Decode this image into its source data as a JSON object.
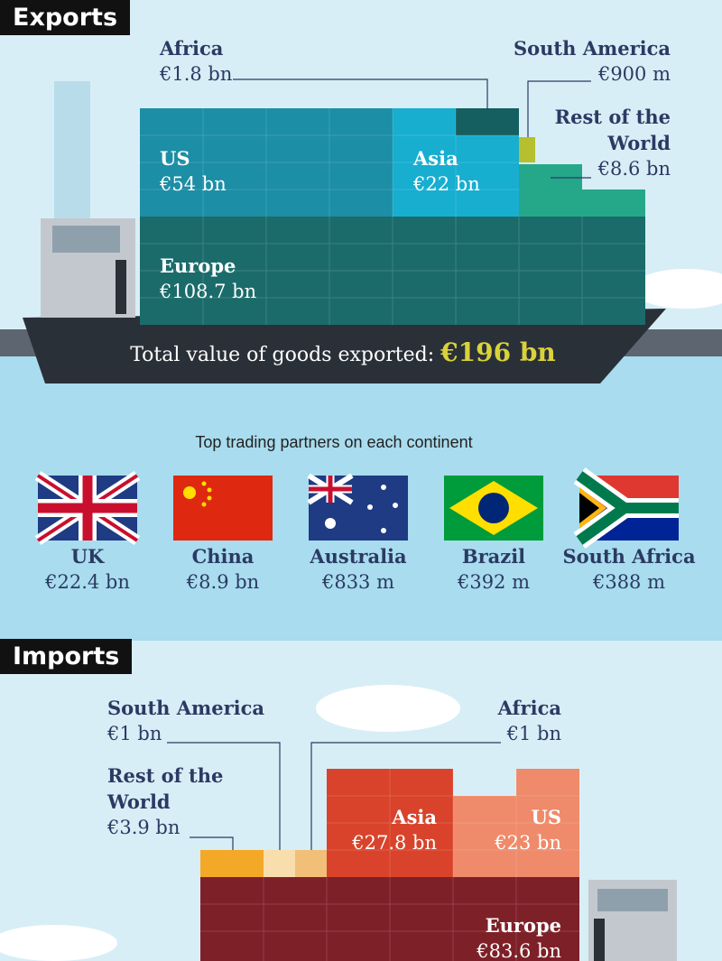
{
  "exports": {
    "title": "Exports",
    "regions": [
      {
        "name": "Africa",
        "value": "€1.8 bn"
      },
      {
        "name": "South America",
        "value": "€900 m"
      },
      {
        "name": "Rest of the World",
        "value": "€8.6 bn"
      },
      {
        "name": "US",
        "value": "€54 bn"
      },
      {
        "name": "Asia",
        "value": "€22 bn"
      },
      {
        "name": "Europe",
        "value": "€108.7 bn"
      }
    ],
    "total_label": "Total value of goods exported:",
    "total_value": "€196 bn"
  },
  "partners": {
    "title": "Top trading partners on each continent",
    "items": [
      {
        "country": "UK",
        "value": "€22.4 bn"
      },
      {
        "country": "China",
        "value": "€8.9 bn"
      },
      {
        "country": "Australia",
        "value": "€833 m"
      },
      {
        "country": "Brazil",
        "value": "€392 m"
      },
      {
        "country": "South Africa",
        "value": "€388 m"
      }
    ]
  },
  "imports": {
    "title": "Imports",
    "regions": [
      {
        "name": "South America",
        "value": "€1 bn"
      },
      {
        "name": "Africa",
        "value": "€1 bn"
      },
      {
        "name": "Rest of the World",
        "value": "€3.9 bn"
      },
      {
        "name": "Asia",
        "value": "€27.8 bn"
      },
      {
        "name": "US",
        "value": "€23 bn"
      },
      {
        "name": "Europe",
        "value": "€83.6 bn"
      }
    ]
  }
}
